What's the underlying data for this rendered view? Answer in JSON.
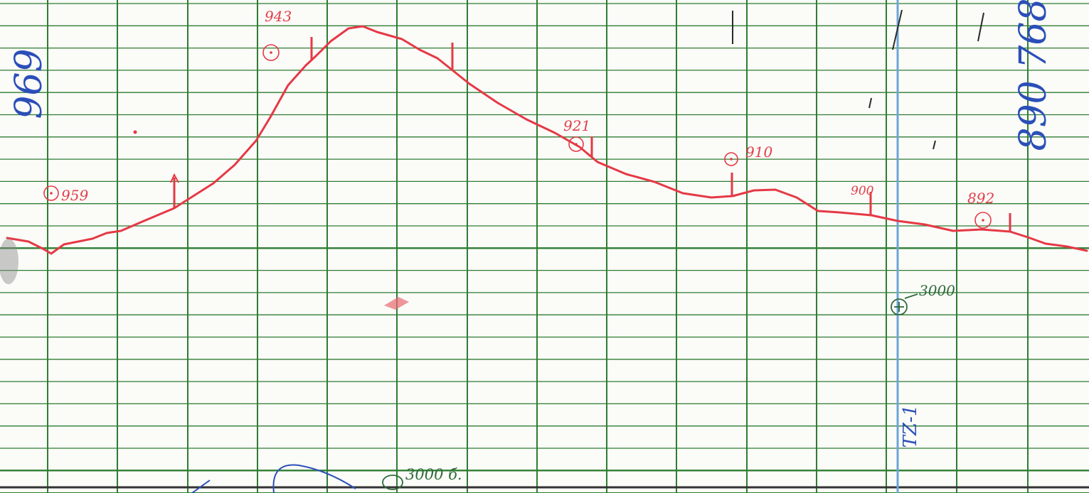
{
  "document": {
    "paper_color": "#fbfbf8",
    "grid_color": "#2e7d32",
    "profile_color": "#e53945",
    "blue_ink": "#2b4fb8",
    "green_ink": "#2f6a3a"
  },
  "annotations": {
    "red": {
      "e959": "959",
      "e943": "943",
      "e921": "921",
      "e910": "910",
      "e900": "900",
      "e892": "892"
    },
    "blue": {
      "left_margin": "969",
      "right_margin": "890 768",
      "vertical_line_label": "TZ-1"
    },
    "green": {
      "distance": "3000",
      "bottom": "3000 б."
    }
  }
}
